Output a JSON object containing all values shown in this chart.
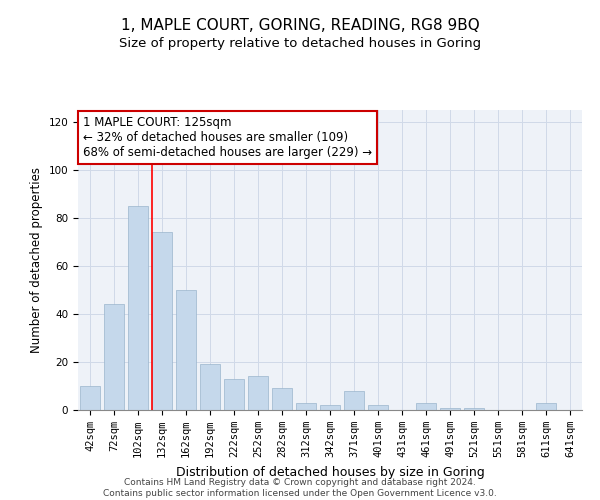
{
  "title": "1, MAPLE COURT, GORING, READING, RG8 9BQ",
  "subtitle": "Size of property relative to detached houses in Goring",
  "xlabel": "Distribution of detached houses by size in Goring",
  "ylabel": "Number of detached properties",
  "categories": [
    "42sqm",
    "72sqm",
    "102sqm",
    "132sqm",
    "162sqm",
    "192sqm",
    "222sqm",
    "252sqm",
    "282sqm",
    "312sqm",
    "342sqm",
    "371sqm",
    "401sqm",
    "431sqm",
    "461sqm",
    "491sqm",
    "521sqm",
    "551sqm",
    "581sqm",
    "611sqm",
    "641sqm"
  ],
  "values": [
    10,
    44,
    85,
    74,
    50,
    19,
    13,
    14,
    9,
    3,
    2,
    8,
    2,
    0,
    3,
    1,
    1,
    0,
    0,
    3,
    0
  ],
  "bar_color": "#c5d8eb",
  "bar_edge_color": "#9ab5cc",
  "red_line_index": 3,
  "annotation_text": "1 MAPLE COURT: 125sqm\n← 32% of detached houses are smaller (109)\n68% of semi-detached houses are larger (229) →",
  "annotation_box_color": "#ffffff",
  "annotation_box_edge": "#cc0000",
  "ylim_max": 125,
  "yticks": [
    0,
    20,
    40,
    60,
    80,
    100,
    120
  ],
  "grid_color": "#d0d9e8",
  "background_color": "#eef2f8",
  "footer_line1": "Contains HM Land Registry data © Crown copyright and database right 2024.",
  "footer_line2": "Contains public sector information licensed under the Open Government Licence v3.0.",
  "title_fontsize": 11,
  "subtitle_fontsize": 9.5,
  "xlabel_fontsize": 9,
  "ylabel_fontsize": 8.5,
  "tick_fontsize": 7.5,
  "annotation_fontsize": 8.5,
  "footer_fontsize": 6.5
}
